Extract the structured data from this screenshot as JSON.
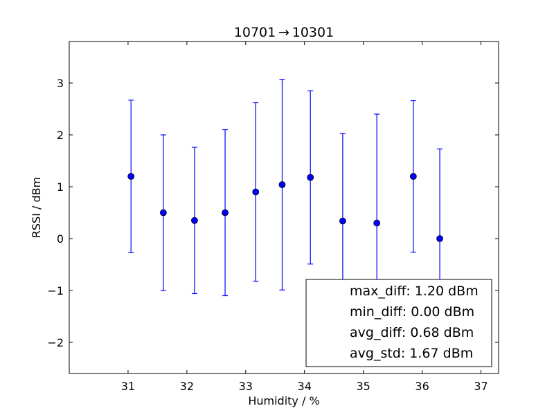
{
  "chart_data": {
    "type": "scatter",
    "title": "10701 → 10301",
    "xlabel": "Humidity / %",
    "ylabel": "RSSI / dBm",
    "xlim": [
      30.0,
      37.3
    ],
    "ylim": [
      -2.6,
      3.8
    ],
    "xticks": [
      31,
      32,
      33,
      34,
      35,
      36,
      37
    ],
    "yticks": [
      -2,
      -1,
      0,
      1,
      2,
      3
    ],
    "ytick_labels": [
      "−2",
      "−1",
      "0",
      "1",
      "2",
      "3"
    ],
    "grid": false,
    "series": [
      {
        "marker": "circle",
        "color": "#0000ff",
        "points": [
          {
            "x": 31.05,
            "y": 1.2,
            "err": 1.47
          },
          {
            "x": 31.6,
            "y": 0.5,
            "err": 1.5
          },
          {
            "x": 32.13,
            "y": 0.35,
            "err": 1.41
          },
          {
            "x": 32.65,
            "y": 0.5,
            "err": 1.6
          },
          {
            "x": 33.17,
            "y": 0.9,
            "err": 1.72
          },
          {
            "x": 33.62,
            "y": 1.04,
            "err": 2.03
          },
          {
            "x": 34.1,
            "y": 1.18,
            "err": 1.67
          },
          {
            "x": 34.65,
            "y": 0.34,
            "err": 1.69
          },
          {
            "x": 35.23,
            "y": 0.3,
            "err": 2.1
          },
          {
            "x": 35.85,
            "y": 1.2,
            "err": 1.46
          },
          {
            "x": 36.3,
            "y": 0.0,
            "err": 1.73
          }
        ]
      }
    ],
    "legend": {
      "placement": "lower-right",
      "lines": [
        "max_diff: 1.20 dBm",
        "min_diff: 0.00 dBm",
        "avg_diff: 0.68 dBm",
        "avg_std: 1.67 dBm"
      ]
    }
  }
}
